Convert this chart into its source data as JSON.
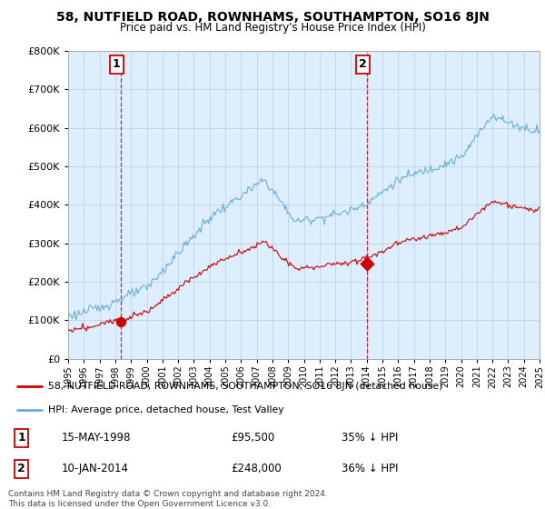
{
  "title": "58, NUTFIELD ROAD, ROWNHAMS, SOUTHAMPTON, SO16 8JN",
  "subtitle": "Price paid vs. HM Land Registry's House Price Index (HPI)",
  "legend_line1": "58, NUTFIELD ROAD, ROWNHAMS, SOUTHAMPTON, SO16 8JN (detached house)",
  "legend_line2": "HPI: Average price, detached house, Test Valley",
  "annotation1_date": "15-MAY-1998",
  "annotation1_price": "£95,500",
  "annotation1_hpi": "35% ↓ HPI",
  "annotation2_date": "10-JAN-2014",
  "annotation2_price": "£248,000",
  "annotation2_hpi": "36% ↓ HPI",
  "footnote": "Contains HM Land Registry data © Crown copyright and database right 2024.\nThis data is licensed under the Open Government Licence v3.0.",
  "ylim": [
    0,
    800000
  ],
  "yticks": [
    0,
    100000,
    200000,
    300000,
    400000,
    500000,
    600000,
    700000,
    800000
  ],
  "hpi_color": "#6baed6",
  "price_color": "#cc0000",
  "dashed_color": "#cc0000",
  "chart_bg_color": "#ddeeff",
  "background_color": "#ffffff",
  "grid_color": "#bbccdd",
  "sale1_x": 1998.37,
  "sale1_y": 95500,
  "sale2_x": 2014.03,
  "sale2_y": 248000,
  "xmin": 1995,
  "xmax": 2025
}
